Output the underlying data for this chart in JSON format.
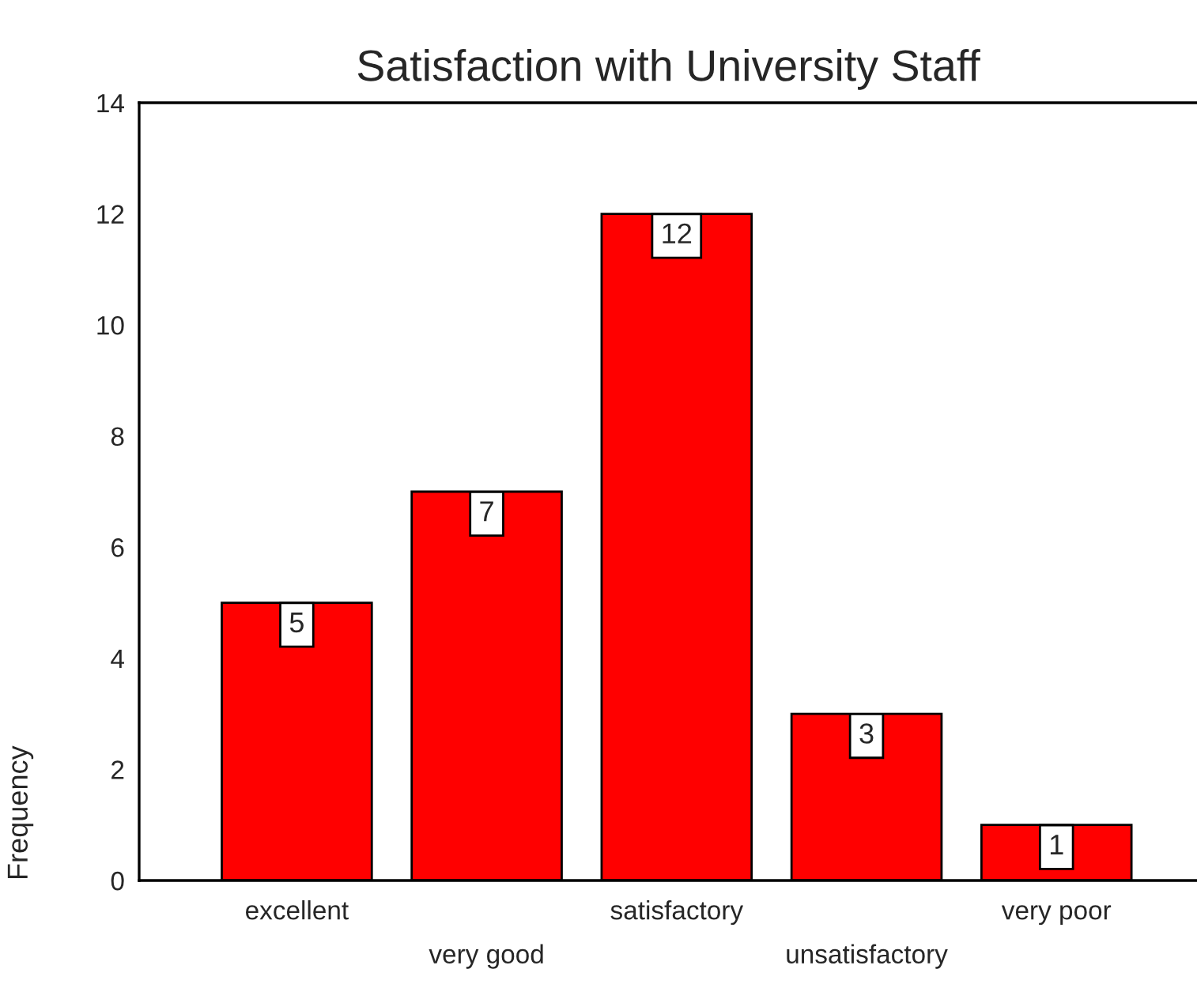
{
  "chart_data": {
    "type": "bar",
    "title": "Satisfaction with University Staff",
    "ylabel": "Frequency",
    "categories": [
      "excellent",
      "very good",
      "satisfactory",
      "unsatisfactory",
      "very poor"
    ],
    "values": [
      5,
      7,
      12,
      3,
      1
    ],
    "color": "#ff0000",
    "ylim": [
      0,
      14
    ],
    "yticks": [
      0,
      2,
      4,
      6,
      8,
      10,
      12,
      14
    ],
    "grid": false,
    "data_labels": true
  }
}
